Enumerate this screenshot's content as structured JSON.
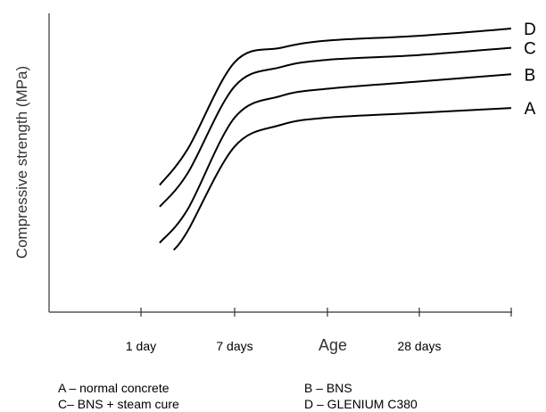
{
  "chart_data": {
    "type": "line",
    "xlabel": "Age",
    "ylabel": "Compressive strength (MPa)",
    "x_ticks": [
      "1 day",
      "7 days",
      "",
      "28 days",
      ""
    ],
    "series": [
      {
        "name": "A",
        "points": [
          [
            0.35,
            0.08
          ],
          [
            0.5,
            0.16
          ],
          [
            1,
            0.51
          ],
          [
            1.5,
            0.6
          ],
          [
            2,
            0.63
          ],
          [
            3,
            0.65
          ],
          [
            4,
            0.67
          ]
        ]
      },
      {
        "name": "B",
        "points": [
          [
            0.2,
            0.11
          ],
          [
            0.5,
            0.25
          ],
          [
            1,
            0.63
          ],
          [
            1.5,
            0.72
          ],
          [
            2,
            0.75
          ],
          [
            3,
            0.78
          ],
          [
            4,
            0.81
          ]
        ]
      },
      {
        "name": "C",
        "points": [
          [
            0.2,
            0.26
          ],
          [
            0.5,
            0.4
          ],
          [
            1,
            0.76
          ],
          [
            1.5,
            0.84
          ],
          [
            2,
            0.87
          ],
          [
            3,
            0.89
          ],
          [
            4,
            0.92
          ]
        ]
      },
      {
        "name": "D",
        "points": [
          [
            0.2,
            0.35
          ],
          [
            0.5,
            0.5
          ],
          [
            1,
            0.86
          ],
          [
            1.5,
            0.92
          ],
          [
            2,
            0.95
          ],
          [
            3,
            0.97
          ],
          [
            4,
            1.0
          ]
        ]
      }
    ],
    "grid": false,
    "legend": [
      {
        "key": "A",
        "text": "A – normal concrete"
      },
      {
        "key": "B",
        "text": "B – BNS"
      },
      {
        "key": "C",
        "text": "C– BNS + steam cure"
      },
      {
        "key": "D",
        "text": "D – GLENIUM C380"
      }
    ]
  }
}
